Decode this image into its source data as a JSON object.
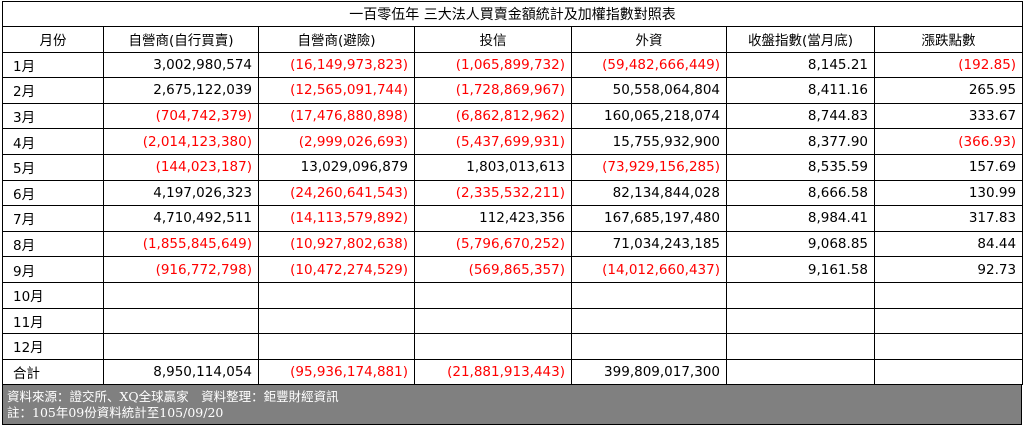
{
  "title": "一百零伍年 三大法人買賣金額統計及加權指數對照表",
  "headers": [
    "月份",
    "自營商(自行買賣)",
    "自營商(避險)",
    "投信",
    "外資",
    "收盤指數(當月底)",
    "漲跌點數"
  ],
  "rows": [
    {
      "month": "1月",
      "cells": [
        "3,002,980,574",
        "(16,149,973,823)",
        "(1,065,899,732)",
        "(59,482,666,449)",
        "8,145.21",
        "(192.85)"
      ]
    },
    {
      "month": "2月",
      "cells": [
        "2,675,122,039",
        "(12,565,091,744)",
        "(1,728,869,967)",
        "50,558,064,804",
        "8,411.16",
        "265.95"
      ]
    },
    {
      "month": "3月",
      "cells": [
        "(704,742,379)",
        "(17,476,880,898)",
        "(6,862,812,962)",
        "160,065,218,074",
        "8,744.83",
        "333.67"
      ]
    },
    {
      "month": "4月",
      "cells": [
        "(2,014,123,380)",
        "(2,999,026,693)",
        "(5,437,699,931)",
        "15,755,932,900",
        "8,377.90",
        "(366.93)"
      ]
    },
    {
      "month": "5月",
      "cells": [
        "(144,023,187)",
        "13,029,096,879",
        "1,803,013,613",
        "(73,929,156,285)",
        "8,535.59",
        "157.69"
      ]
    },
    {
      "month": "6月",
      "cells": [
        "4,197,026,323",
        "(24,260,641,543)",
        "(2,335,532,211)",
        "82,134,844,028",
        "8,666.58",
        "130.99"
      ]
    },
    {
      "month": "7月",
      "cells": [
        "4,710,492,511",
        "(14,113,579,892)",
        "112,423,356",
        "167,685,197,480",
        "8,984.41",
        "317.83"
      ]
    },
    {
      "month": "8月",
      "cells": [
        "(1,855,845,649)",
        "(10,927,802,638)",
        "(5,796,670,252)",
        "71,034,243,185",
        "9,068.85",
        "84.44"
      ]
    },
    {
      "month": "9月",
      "cells": [
        "(916,772,798)",
        "(10,472,274,529)",
        "(569,865,357)",
        "(14,012,660,437)",
        "9,161.58",
        "92.73"
      ]
    },
    {
      "month": "10月",
      "cells": [
        "",
        "",
        "",
        "",
        "",
        ""
      ]
    },
    {
      "month": "11月",
      "cells": [
        "",
        "",
        "",
        "",
        "",
        ""
      ]
    },
    {
      "month": "12月",
      "cells": [
        "",
        "",
        "",
        "",
        "",
        ""
      ]
    },
    {
      "month": "合計",
      "cells": [
        "8,950,114,054",
        "(95,936,174,881)",
        "(21,881,913,443)",
        "399,809,017,300",
        "",
        ""
      ]
    }
  ],
  "footer": {
    "source": "資料來源：證交所、XQ全球贏家　資料整理：鉅豐財經資訊",
    "note": "註：105年09份資料統計至105/09/20"
  },
  "colors": {
    "negative": "#ff0000",
    "footer_bg": "#808080"
  }
}
